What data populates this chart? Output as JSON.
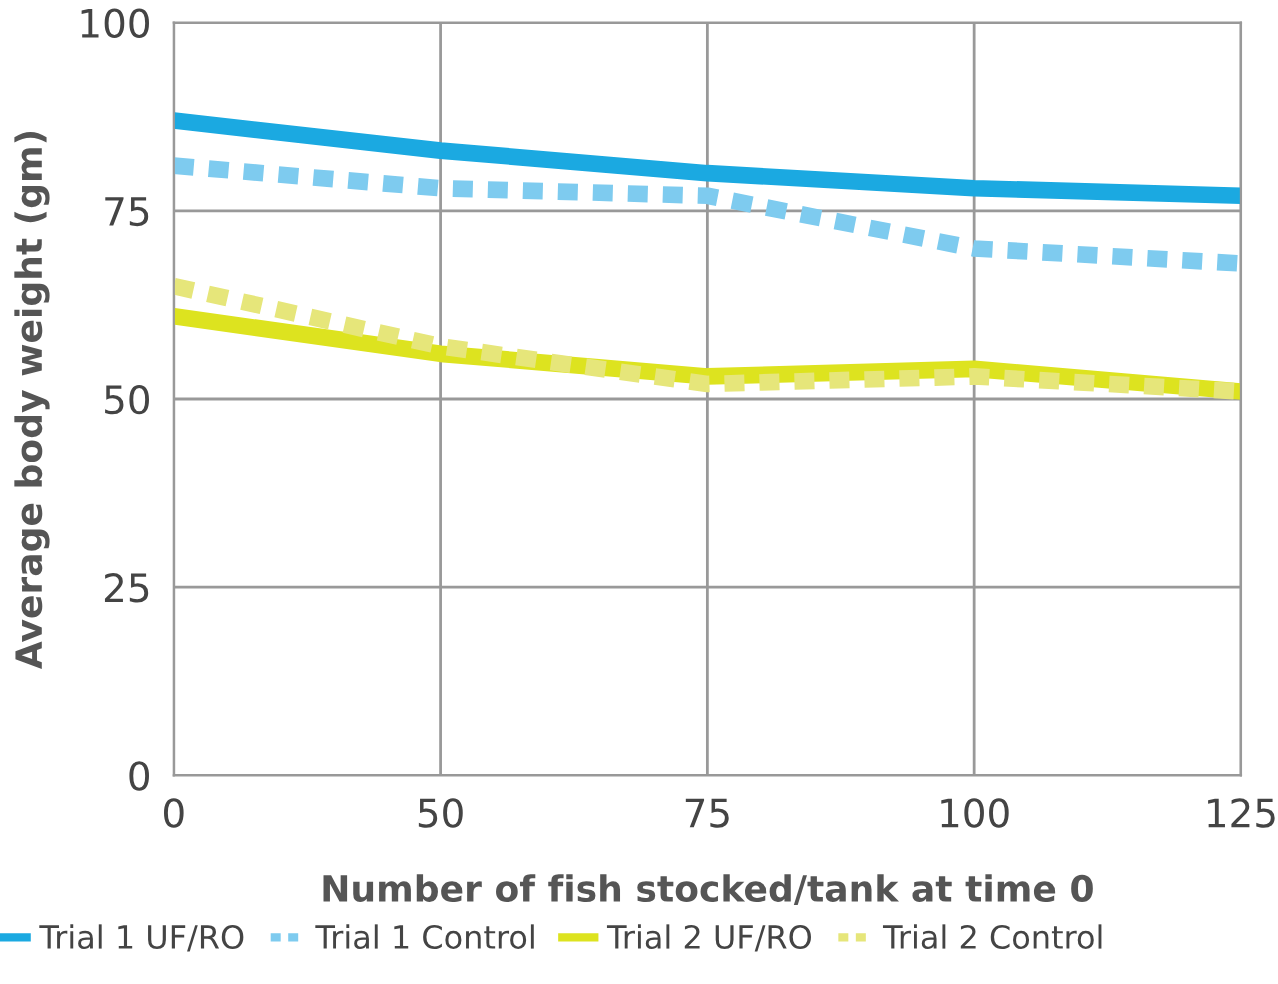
{
  "chart_data": {
    "type": "line",
    "xlabel": "Number of fish stocked/tank at time 0",
    "ylabel": "Average body weight (gm)",
    "categories": [
      "0",
      "50",
      "75",
      "100",
      "125"
    ],
    "series": [
      {
        "name": "Trial 1 UF/RO",
        "color": "#1ba9e1",
        "line_style": "solid",
        "values": [
          87,
          83,
          80,
          78,
          77
        ]
      },
      {
        "name": "Trial 1 Control",
        "color": "#7ecbef",
        "line_style": "dashed",
        "values": [
          81,
          78,
          77,
          70,
          68
        ]
      },
      {
        "name": "Trial 2 UF/RO",
        "color": "#dde31f",
        "line_style": "solid",
        "values": [
          61,
          56,
          53,
          54,
          51
        ]
      },
      {
        "name": "Trial 2 Control",
        "color": "#e6e67a",
        "line_style": "dashed",
        "values": [
          65,
          57,
          52,
          53,
          51
        ]
      }
    ],
    "ylim": [
      0,
      100
    ],
    "yticks": [
      0,
      25,
      50,
      75,
      100
    ],
    "grid": true,
    "legend": "bottom",
    "marker": "none"
  }
}
